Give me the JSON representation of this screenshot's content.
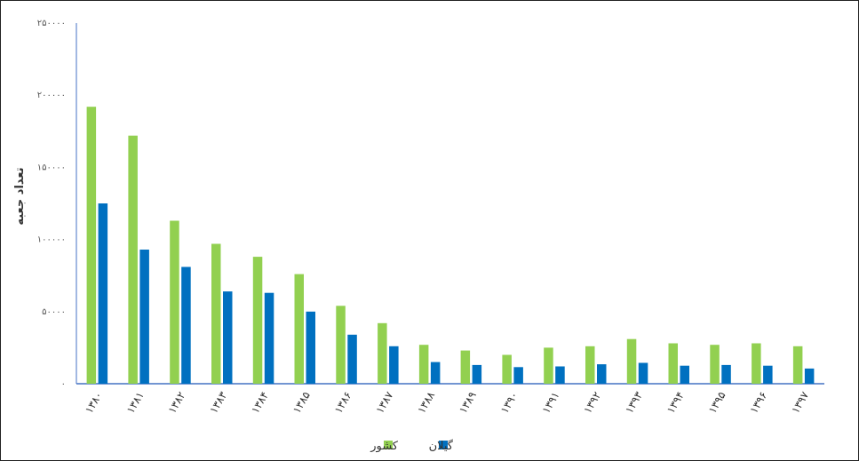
{
  "chart_data": {
    "type": "bar",
    "title": "",
    "xlabel": "",
    "ylabel": "تعداد جعبه",
    "ylim": [
      0,
      250000
    ],
    "yticks": [
      0,
      50000,
      100000,
      150000,
      200000,
      250000
    ],
    "ytick_labels": [
      "۰",
      "۵۰۰۰۰",
      "۱۰۰۰۰۰",
      "۱۵۰۰۰۰",
      "۲۰۰۰۰۰",
      "۲۵۰۰۰۰"
    ],
    "categories": [
      "۱۳۸۰",
      "۱۳۸۱",
      "۱۳۸۲",
      "۱۳۸۳",
      "۱۳۸۴",
      "۱۳۸۵",
      "۱۳۸۶",
      "۱۳۸۷",
      "۱۳۸۸",
      "۱۳۸۹",
      "۱۳۹۰",
      "۱۳۹۱",
      "۱۳۹۲",
      "۱۳۹۳",
      "۱۳۹۴",
      "۱۳۹۵",
      "۱۳۹۶",
      "۱۳۹۷"
    ],
    "series": [
      {
        "name": "کشور",
        "color": "#92d050",
        "values": [
          192000,
          172000,
          113000,
          97000,
          88000,
          76000,
          54000,
          42000,
          27000,
          23000,
          20000,
          25000,
          26000,
          31000,
          28000,
          27000,
          28000,
          26000
        ]
      },
      {
        "name": "گیلان",
        "color": "#0070c0",
        "values": [
          125000,
          93000,
          81000,
          64000,
          63000,
          50000,
          34000,
          26000,
          15000,
          13000,
          11500,
          12000,
          13500,
          14500,
          12500,
          13000,
          12500,
          10500
        ]
      }
    ],
    "grid": false,
    "legend_position": "bottom-center"
  }
}
